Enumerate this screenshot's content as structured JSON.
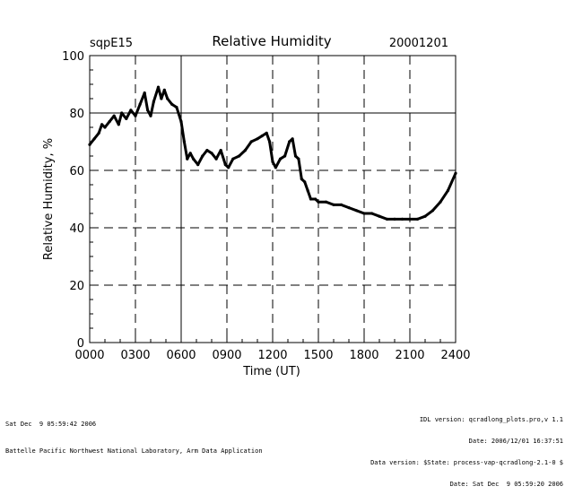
{
  "chart_data": {
    "type": "line",
    "site": "sqpE15",
    "title": "Relative Humidity",
    "date": "20001201",
    "xlabel": "Time (UT)",
    "ylabel": "Relative Humidity, %",
    "xlim": [
      0,
      24
    ],
    "ylim": [
      0,
      100
    ],
    "xticks": [
      0,
      3,
      6,
      9,
      12,
      15,
      18,
      21,
      24
    ],
    "xtick_labels": [
      "0000",
      "0300",
      "0600",
      "0900",
      "1200",
      "1500",
      "1800",
      "2100",
      "2400"
    ],
    "yticks": [
      0,
      20,
      40,
      60,
      80,
      100
    ],
    "ytick_labels": [
      "0",
      "20",
      "40",
      "60",
      "80",
      "100"
    ],
    "grid": "dashed",
    "series": [
      {
        "name": "Relative Humidity",
        "x": [
          0.0,
          0.3,
          0.6,
          0.8,
          1.0,
          1.3,
          1.6,
          1.9,
          2.1,
          2.4,
          2.7,
          3.0,
          3.3,
          3.6,
          3.8,
          4.0,
          4.2,
          4.5,
          4.7,
          4.9,
          5.1,
          5.4,
          5.7,
          6.0,
          6.2,
          6.4,
          6.6,
          6.8,
          7.1,
          7.4,
          7.7,
          8.0,
          8.3,
          8.6,
          8.9,
          9.1,
          9.4,
          9.8,
          10.2,
          10.6,
          11.0,
          11.3,
          11.6,
          11.8,
          12.0,
          12.2,
          12.5,
          12.8,
          13.1,
          13.3,
          13.5,
          13.7,
          13.9,
          14.1,
          14.3,
          14.5,
          14.8,
          15.0,
          15.5,
          16.0,
          16.5,
          17.0,
          17.5,
          18.0,
          18.5,
          19.0,
          19.5,
          20.0,
          20.5,
          21.0,
          21.5,
          22.0,
          22.5,
          23.0,
          23.5,
          24.0
        ],
        "values": [
          69,
          71,
          73,
          76,
          75,
          77,
          79,
          76,
          80,
          78,
          81,
          79,
          83,
          87,
          81,
          79,
          84,
          89,
          85,
          88,
          85,
          83,
          82,
          77,
          70,
          64,
          66,
          64,
          62,
          65,
          67,
          66,
          64,
          67,
          62,
          61,
          64,
          65,
          67,
          70,
          71,
          72,
          73,
          70,
          63,
          61,
          64,
          65,
          70,
          71,
          65,
          64,
          57,
          56,
          53,
          50,
          50,
          49,
          49,
          48,
          48,
          47,
          46,
          45,
          45,
          44,
          43,
          43,
          43,
          43,
          43,
          44,
          46,
          49,
          53,
          59
        ]
      }
    ]
  },
  "footer": {
    "left_timestamp": "Sat Dec  9 05:59:42 2006",
    "left_credit": "Battelle Pacific Northwest National Laboratory, Arm Data Application",
    "right_idl": "IDL version: qcradlong_plots.pro,v 1.1",
    "right_date1": "Date: 2006/12/01 16:37:51",
    "right_data": "Data version: $State: process-vap-qcradlong-2.1-0 $",
    "right_date2": "Date: Sat Dec  9 05:59:20 2006"
  }
}
